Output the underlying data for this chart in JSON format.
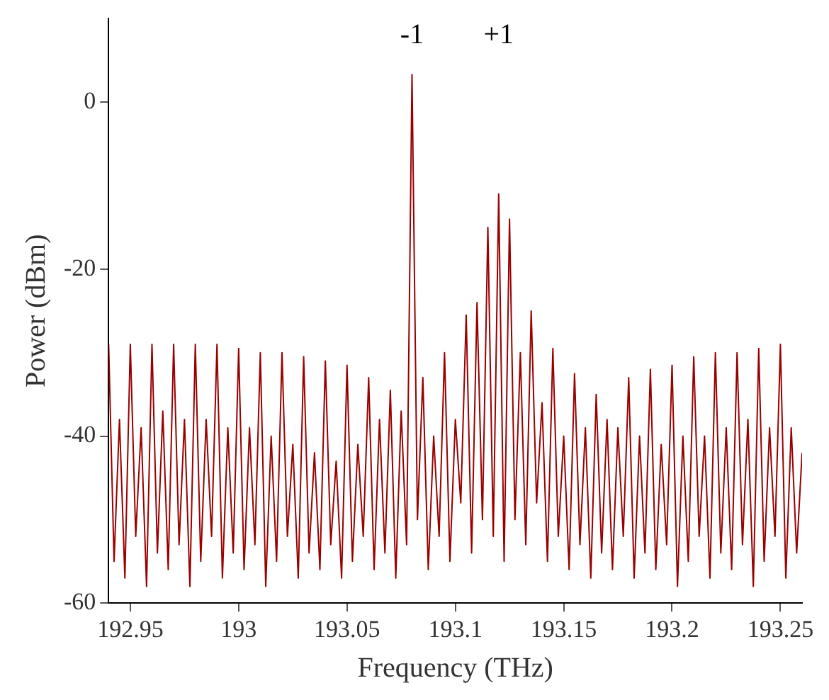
{
  "chart_data": {
    "type": "line",
    "xlabel": "Frequency (THz)",
    "ylabel": "Power (dBm)",
    "x": [
      192.94,
      192.9425,
      192.945,
      192.9475,
      192.95,
      192.9525,
      192.955,
      192.9575,
      192.96,
      192.9625,
      192.965,
      192.9675,
      192.97,
      192.9725,
      192.975,
      192.9775,
      192.98,
      192.9825,
      192.985,
      192.9875,
      192.99,
      192.9925,
      192.995,
      192.9975,
      193.0,
      193.0025,
      193.005,
      193.0075,
      193.01,
      193.0125,
      193.015,
      193.0175,
      193.02,
      193.0225,
      193.025,
      193.0275,
      193.03,
      193.0325,
      193.035,
      193.0375,
      193.04,
      193.0425,
      193.045,
      193.0475,
      193.05,
      193.0525,
      193.055,
      193.0575,
      193.06,
      193.0625,
      193.065,
      193.0675,
      193.07,
      193.0725,
      193.075,
      193.0775,
      193.08,
      193.0825,
      193.085,
      193.0875,
      193.09,
      193.0925,
      193.095,
      193.0975,
      193.1,
      193.1025,
      193.105,
      193.1075,
      193.11,
      193.1125,
      193.115,
      193.1175,
      193.12,
      193.1225,
      193.125,
      193.1275,
      193.13,
      193.1325,
      193.135,
      193.1375,
      193.14,
      193.1425,
      193.145,
      193.1475,
      193.15,
      193.1525,
      193.155,
      193.1575,
      193.16,
      193.1625,
      193.165,
      193.1675,
      193.17,
      193.1725,
      193.175,
      193.1775,
      193.18,
      193.1825,
      193.185,
      193.1875,
      193.19,
      193.1925,
      193.195,
      193.1975,
      193.2,
      193.2025,
      193.205,
      193.2075,
      193.21,
      193.2125,
      193.215,
      193.2175,
      193.22,
      193.2225,
      193.225,
      193.2275,
      193.23,
      193.2325,
      193.235,
      193.2375,
      193.24,
      193.2425,
      193.245,
      193.2475,
      193.25,
      193.2525,
      193.255,
      193.2575,
      193.26
    ],
    "series": [
      {
        "color": "#990000",
        "values": [
          -29,
          -55,
          -38,
          -57,
          -29,
          -52,
          -39,
          -58,
          -29,
          -54,
          -37,
          -56,
          -29,
          -53,
          -38,
          -58,
          -29,
          -55,
          -38,
          -52,
          -29,
          -57,
          -39,
          -54,
          -29.5,
          -56,
          -39,
          -53,
          -30,
          -58,
          -40,
          -55,
          -30,
          -52,
          -41,
          -57,
          -30.5,
          -54,
          -42,
          -56,
          -31,
          -53,
          -43,
          -57,
          -31.5,
          -55,
          -41,
          -52,
          -33,
          -56,
          -38,
          -54,
          -34.5,
          -57,
          -37,
          -53,
          3.3,
          -50,
          -33,
          -56,
          -40,
          -52,
          -30,
          -55,
          -38,
          -48,
          -25.5,
          -54,
          -24,
          -50,
          -15,
          -52,
          -11,
          -55,
          -14,
          -50,
          -30,
          -53,
          -25,
          -48,
          -36,
          -55,
          -29.5,
          -52,
          -40,
          -56,
          -32.5,
          -53,
          -39,
          -57,
          -35,
          -54,
          -38,
          -56,
          -39,
          -52,
          -33,
          -57,
          -40,
          -54,
          -32,
          -56,
          -41,
          -53,
          -31.5,
          -58,
          -40,
          -55,
          -30.5,
          -52,
          -40,
          -57,
          -30,
          -54,
          -39,
          -56,
          -30,
          -53,
          -38,
          -58,
          -29.5,
          -55,
          -39,
          -52,
          -29,
          -57,
          -39,
          -54,
          -42
        ]
      }
    ],
    "xlim": [
      192.94,
      193.26
    ],
    "xticks": [
      192.95,
      193,
      193.05,
      193.1,
      193.15,
      193.2,
      193.25
    ],
    "ylim": [
      -60,
      10
    ],
    "yticks": [
      -60,
      -40,
      -20,
      0
    ],
    "grid": false,
    "legend": false,
    "marker": "none",
    "line_style": "solid",
    "annotations": [
      "-1",
      "+1"
    ]
  }
}
